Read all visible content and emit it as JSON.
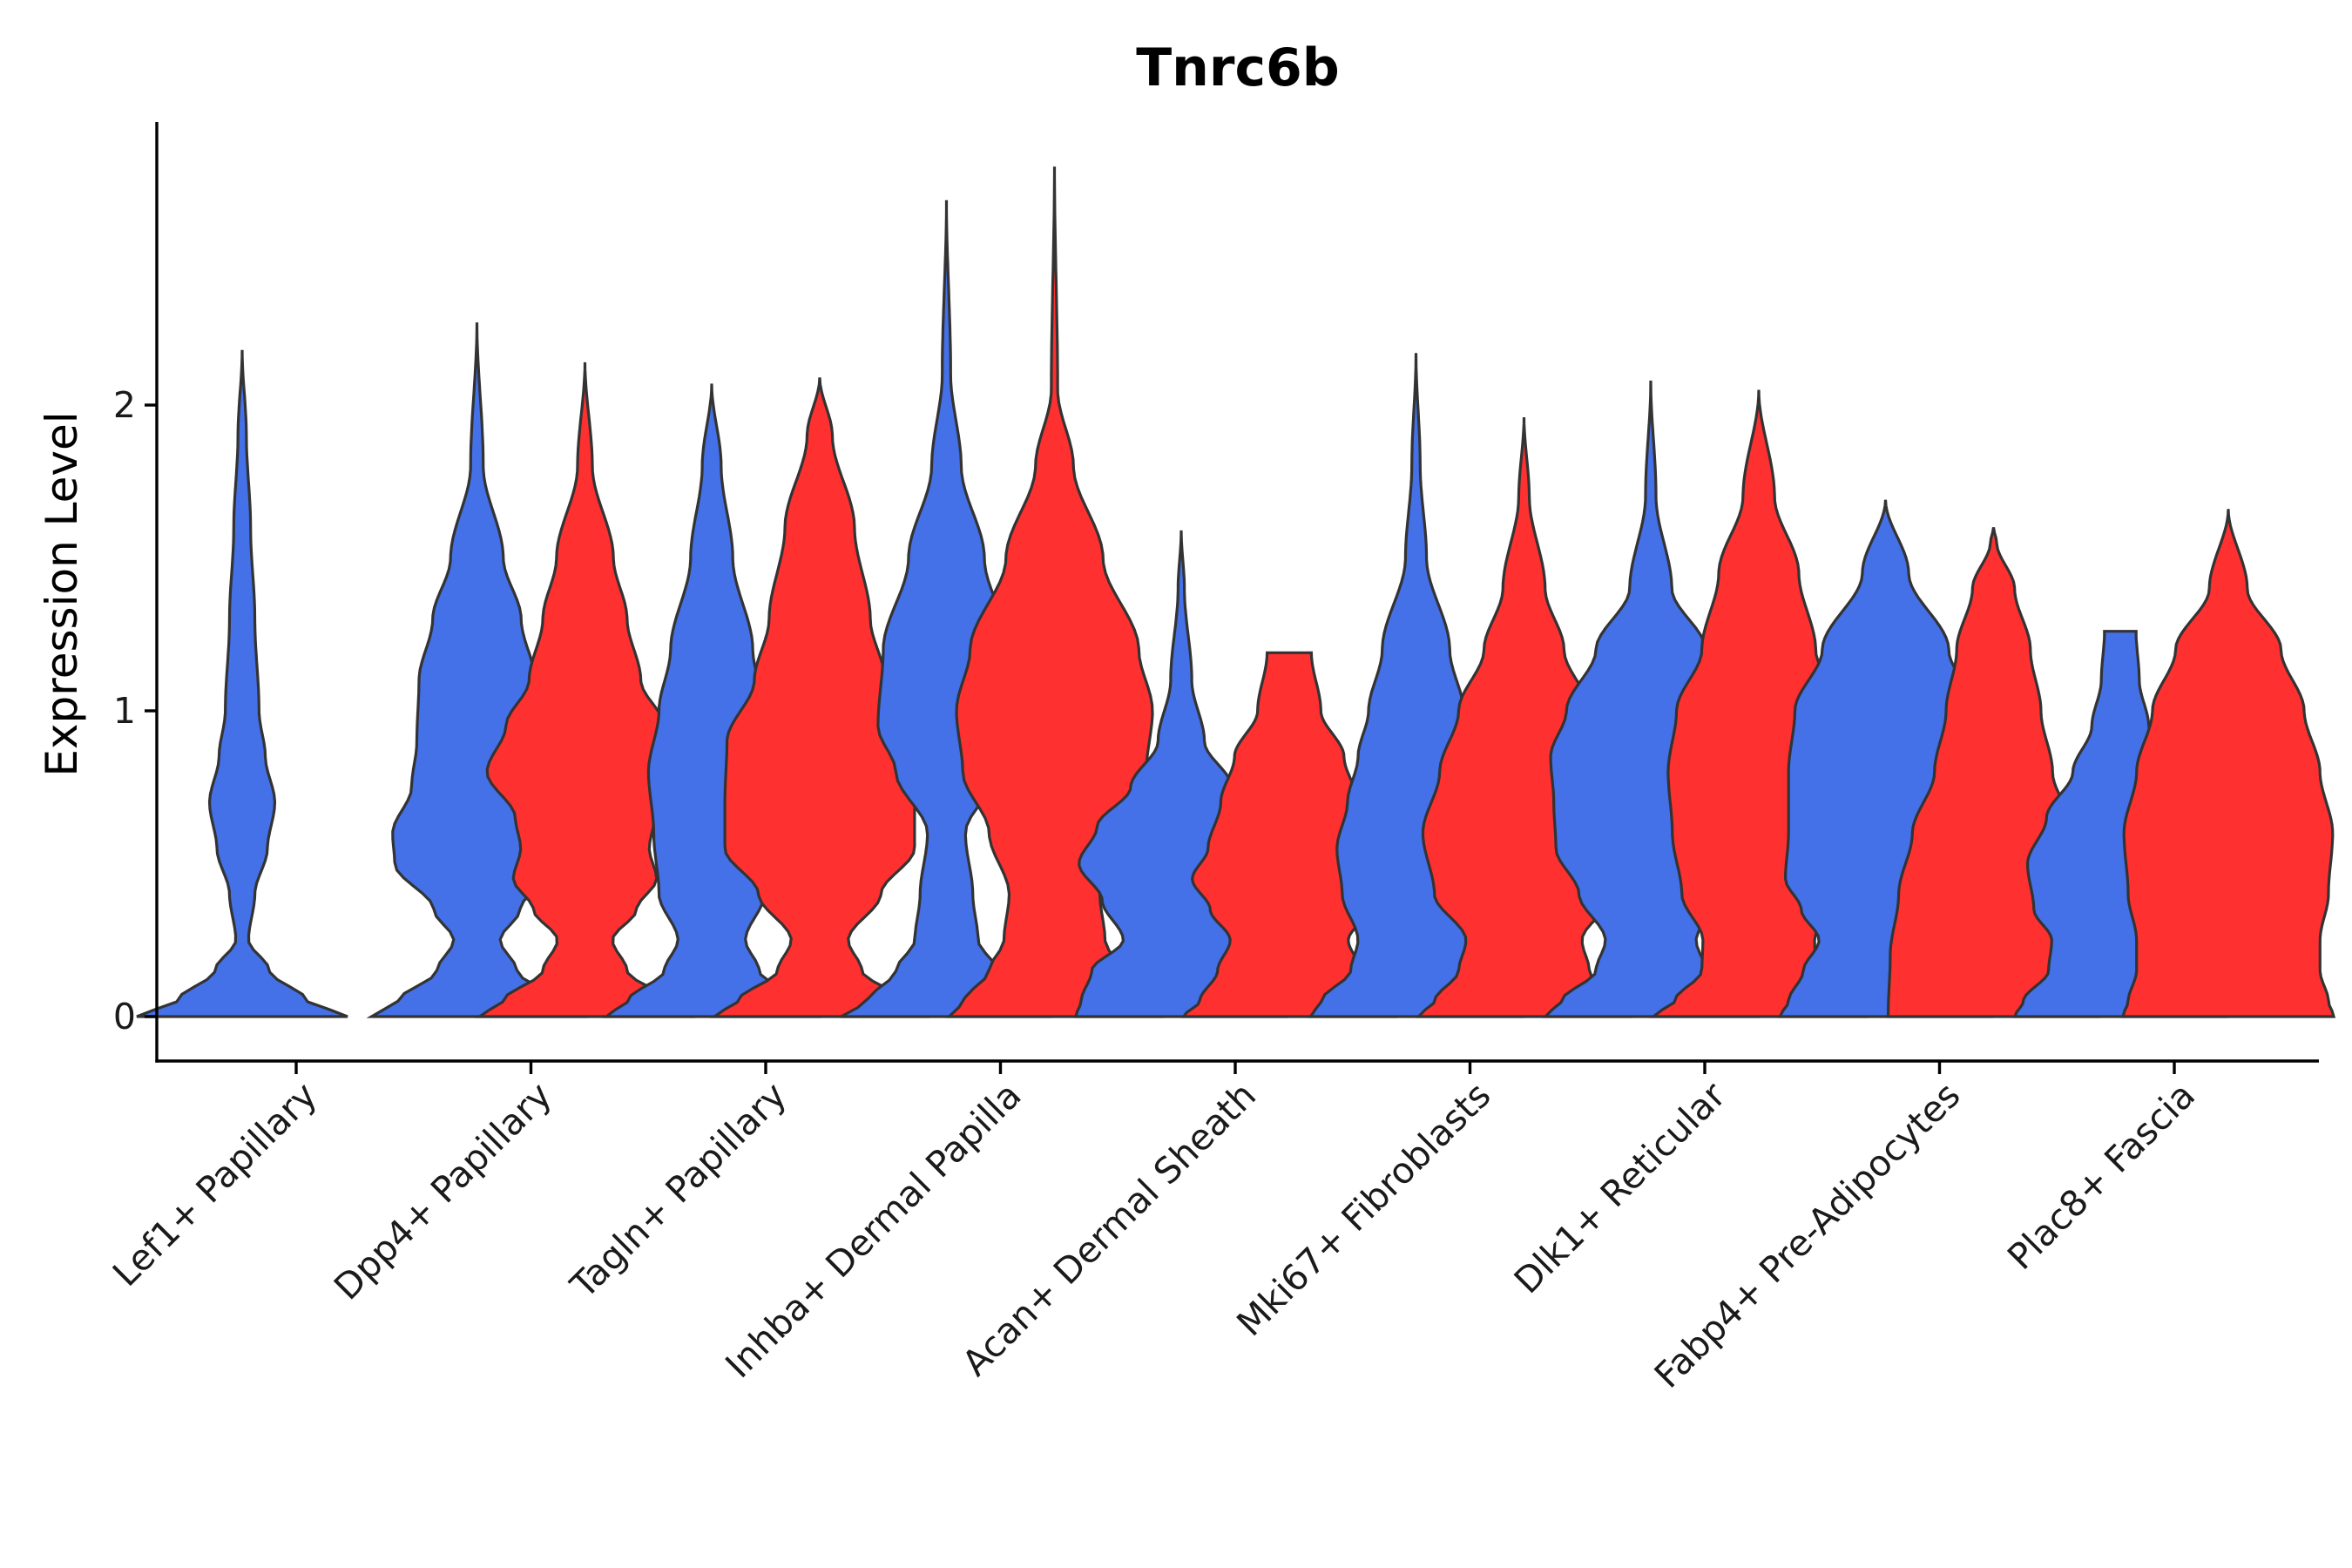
{
  "chart_data": {
    "type": "violin",
    "title": "Tnrc6b",
    "xlabel": "",
    "ylabel": "Expression Level",
    "ylim": [
      -0.14,
      2.93
    ],
    "yticks": [
      0,
      1,
      2
    ],
    "ytick_labels": [
      "0",
      "1",
      "2"
    ],
    "grid": false,
    "legend": "none",
    "colors": {
      "group_a": "#4470E8",
      "group_b": "#FF3030"
    },
    "categories": [
      "Lef1+ Papillary",
      "Dpp4+ Papillary",
      "Tagln+ Papillary",
      "Inhba+ Dermal Papilla",
      "Acan+ Dermal Sheath",
      "Mki67+ Fibroblasts",
      "Dlk1+ Reticular",
      "Fabp4+ Pre-Adipocytes",
      "Plac8+ Fascia"
    ],
    "violins": [
      {
        "category": "Lef1+ Papillary",
        "group": "group_a",
        "max": 2.18,
        "profile": [
          [
            0,
            1.0
          ],
          [
            0.05,
            0.62
          ],
          [
            0.15,
            0.26
          ],
          [
            0.25,
            0.06
          ],
          [
            0.4,
            0.12
          ],
          [
            0.55,
            0.24
          ],
          [
            0.7,
            0.31
          ],
          [
            0.85,
            0.22
          ],
          [
            1.0,
            0.16
          ],
          [
            1.3,
            0.12
          ],
          [
            1.6,
            0.08
          ],
          [
            1.9,
            0.04
          ],
          [
            2.18,
            0.0
          ]
        ]
      },
      {
        "category": "Dpp4+ Papillary",
        "group": "group_a",
        "max": 2.27,
        "profile": [
          [
            0,
            1.0
          ],
          [
            0.05,
            0.75
          ],
          [
            0.15,
            0.38
          ],
          [
            0.25,
            0.22
          ],
          [
            0.35,
            0.41
          ],
          [
            0.5,
            0.78
          ],
          [
            0.6,
            0.8
          ],
          [
            0.75,
            0.62
          ],
          [
            0.9,
            0.57
          ],
          [
            1.1,
            0.55
          ],
          [
            1.3,
            0.42
          ],
          [
            1.5,
            0.25
          ],
          [
            1.8,
            0.06
          ],
          [
            2.27,
            0.0
          ]
        ]
      },
      {
        "category": "Dpp4+ Papillary",
        "group": "group_b",
        "max": 2.14,
        "profile": [
          [
            0,
            1.0
          ],
          [
            0.05,
            0.78
          ],
          [
            0.15,
            0.4
          ],
          [
            0.25,
            0.26
          ],
          [
            0.35,
            0.49
          ],
          [
            0.45,
            0.68
          ],
          [
            0.55,
            0.61
          ],
          [
            0.65,
            0.66
          ],
          [
            0.8,
            0.93
          ],
          [
            0.95,
            0.75
          ],
          [
            1.1,
            0.53
          ],
          [
            1.3,
            0.4
          ],
          [
            1.5,
            0.27
          ],
          [
            1.8,
            0.07
          ],
          [
            2.14,
            0.0
          ]
        ]
      },
      {
        "category": "Tagln+ Papillary",
        "group": "group_a",
        "max": 2.07,
        "profile": [
          [
            0,
            1.0
          ],
          [
            0.05,
            0.8
          ],
          [
            0.15,
            0.45
          ],
          [
            0.25,
            0.32
          ],
          [
            0.4,
            0.5
          ],
          [
            0.6,
            0.55
          ],
          [
            0.8,
            0.6
          ],
          [
            1.0,
            0.5
          ],
          [
            1.2,
            0.39
          ],
          [
            1.5,
            0.2
          ],
          [
            1.8,
            0.09
          ],
          [
            2.07,
            0.0
          ]
        ]
      },
      {
        "category": "Tagln+ Papillary",
        "group": "group_b",
        "max": 2.09,
        "profile": [
          [
            0,
            1.0
          ],
          [
            0.05,
            0.78
          ],
          [
            0.15,
            0.4
          ],
          [
            0.25,
            0.27
          ],
          [
            0.4,
            0.58
          ],
          [
            0.55,
            0.9
          ],
          [
            0.7,
            0.9
          ],
          [
            0.9,
            0.88
          ],
          [
            1.1,
            0.62
          ],
          [
            1.3,
            0.48
          ],
          [
            1.6,
            0.33
          ],
          [
            1.9,
            0.12
          ],
          [
            2.09,
            0.0
          ]
        ]
      },
      {
        "category": "Inhba+ Dermal Papilla",
        "group": "group_a",
        "max": 2.67,
        "profile": [
          [
            0,
            1.0
          ],
          [
            0.05,
            0.75
          ],
          [
            0.15,
            0.48
          ],
          [
            0.25,
            0.3
          ],
          [
            0.4,
            0.25
          ],
          [
            0.6,
            0.18
          ],
          [
            0.8,
            0.48
          ],
          [
            0.95,
            0.65
          ],
          [
            1.2,
            0.6
          ],
          [
            1.5,
            0.36
          ],
          [
            1.8,
            0.14
          ],
          [
            2.1,
            0.04
          ],
          [
            2.67,
            0.0
          ]
        ]
      },
      {
        "category": "Inhba+ Dermal Papilla",
        "group": "group_b",
        "max": 2.78,
        "profile": [
          [
            0,
            1.0
          ],
          [
            0.05,
            0.86
          ],
          [
            0.15,
            0.62
          ],
          [
            0.25,
            0.48
          ],
          [
            0.4,
            0.43
          ],
          [
            0.6,
            0.62
          ],
          [
            0.8,
            0.87
          ],
          [
            1.0,
            0.93
          ],
          [
            1.2,
            0.8
          ],
          [
            1.5,
            0.46
          ],
          [
            1.8,
            0.18
          ],
          [
            2.05,
            0.03
          ],
          [
            2.78,
            0.0
          ]
        ]
      },
      {
        "category": "Acan+ Dermal Sheath",
        "group": "group_a",
        "max": 1.59,
        "profile": [
          [
            0,
            1.0
          ],
          [
            0.05,
            0.95
          ],
          [
            0.15,
            0.85
          ],
          [
            0.25,
            0.55
          ],
          [
            0.38,
            0.75
          ],
          [
            0.5,
            0.97
          ],
          [
            0.62,
            0.8
          ],
          [
            0.75,
            0.48
          ],
          [
            0.9,
            0.22
          ],
          [
            1.1,
            0.1
          ],
          [
            1.4,
            0.03
          ],
          [
            1.59,
            0.0
          ]
        ]
      },
      {
        "category": "Acan+ Dermal Sheath",
        "group": "group_b",
        "max": 1.19,
        "profile": [
          [
            0,
            1.0
          ],
          [
            0.05,
            0.85
          ],
          [
            0.15,
            0.68
          ],
          [
            0.25,
            0.56
          ],
          [
            0.35,
            0.75
          ],
          [
            0.45,
            0.92
          ],
          [
            0.55,
            0.77
          ],
          [
            0.7,
            0.65
          ],
          [
            0.85,
            0.52
          ],
          [
            1.0,
            0.3
          ],
          [
            1.19,
            0.21
          ]
        ]
      },
      {
        "category": "Mki67+ Fibroblasts",
        "group": "group_a",
        "max": 2.17,
        "profile": [
          [
            0,
            1.0
          ],
          [
            0.05,
            0.9
          ],
          [
            0.15,
            0.62
          ],
          [
            0.25,
            0.55
          ],
          [
            0.4,
            0.7
          ],
          [
            0.55,
            0.75
          ],
          [
            0.7,
            0.65
          ],
          [
            0.85,
            0.55
          ],
          [
            1.0,
            0.45
          ],
          [
            1.2,
            0.32
          ],
          [
            1.5,
            0.1
          ],
          [
            1.8,
            0.04
          ],
          [
            2.17,
            0.0
          ]
        ]
      },
      {
        "category": "Mki67+ Fibroblasts",
        "group": "group_b",
        "max": 1.96,
        "profile": [
          [
            0,
            1.0
          ],
          [
            0.05,
            0.85
          ],
          [
            0.15,
            0.62
          ],
          [
            0.25,
            0.55
          ],
          [
            0.4,
            0.85
          ],
          [
            0.6,
            0.96
          ],
          [
            0.8,
            0.8
          ],
          [
            1.0,
            0.62
          ],
          [
            1.2,
            0.38
          ],
          [
            1.4,
            0.2
          ],
          [
            1.7,
            0.05
          ],
          [
            1.96,
            0.0
          ]
        ]
      },
      {
        "category": "Dlk1+ Reticular",
        "group": "group_a",
        "max": 2.08,
        "profile": [
          [
            0,
            1.0
          ],
          [
            0.05,
            0.85
          ],
          [
            0.15,
            0.52
          ],
          [
            0.25,
            0.43
          ],
          [
            0.4,
            0.68
          ],
          [
            0.55,
            0.9
          ],
          [
            0.7,
            0.92
          ],
          [
            0.85,
            0.95
          ],
          [
            1.0,
            0.8
          ],
          [
            1.2,
            0.52
          ],
          [
            1.4,
            0.2
          ],
          [
            1.7,
            0.05
          ],
          [
            2.08,
            0.0
          ]
        ]
      },
      {
        "category": "Dlk1+ Reticular",
        "group": "group_b",
        "max": 2.05,
        "profile": [
          [
            0,
            1.0
          ],
          [
            0.05,
            0.8
          ],
          [
            0.15,
            0.54
          ],
          [
            0.25,
            0.53
          ],
          [
            0.4,
            0.73
          ],
          [
            0.6,
            0.82
          ],
          [
            0.8,
            0.86
          ],
          [
            1.0,
            0.78
          ],
          [
            1.2,
            0.54
          ],
          [
            1.45,
            0.38
          ],
          [
            1.7,
            0.15
          ],
          [
            2.05,
            0.0
          ]
        ]
      },
      {
        "category": "Fabp4+ Pre-Adipocytes",
        "group": "group_a",
        "max": 1.69,
        "profile": [
          [
            0,
            1.0
          ],
          [
            0.05,
            0.92
          ],
          [
            0.15,
            0.78
          ],
          [
            0.25,
            0.63
          ],
          [
            0.35,
            0.8
          ],
          [
            0.45,
            0.95
          ],
          [
            0.6,
            0.92
          ],
          [
            0.8,
            0.92
          ],
          [
            1.0,
            0.86
          ],
          [
            1.2,
            0.6
          ],
          [
            1.45,
            0.22
          ],
          [
            1.69,
            0.0
          ]
        ]
      },
      {
        "category": "Fabp4+ Pre-Adipocytes",
        "group": "group_b",
        "max": 1.6,
        "profile": [
          [
            0,
            1.0
          ],
          [
            0.2,
            0.98
          ],
          [
            0.4,
            0.9
          ],
          [
            0.6,
            0.77
          ],
          [
            0.8,
            0.56
          ],
          [
            1.0,
            0.45
          ],
          [
            1.2,
            0.35
          ],
          [
            1.4,
            0.2
          ],
          [
            1.55,
            0.03
          ],
          [
            1.6,
            0.0
          ]
        ]
      },
      {
        "category": "Plac8+ Fascia",
        "group": "group_a",
        "max": 1.26,
        "profile": [
          [
            0,
            1.0
          ],
          [
            0.05,
            0.92
          ],
          [
            0.15,
            0.68
          ],
          [
            0.25,
            0.65
          ],
          [
            0.35,
            0.82
          ],
          [
            0.5,
            0.88
          ],
          [
            0.65,
            0.7
          ],
          [
            0.8,
            0.45
          ],
          [
            0.95,
            0.27
          ],
          [
            1.1,
            0.18
          ],
          [
            1.26,
            0.15
          ]
        ]
      },
      {
        "category": "Plac8+ Fascia",
        "group": "group_b",
        "max": 1.66,
        "profile": [
          [
            0,
            1.0
          ],
          [
            0.05,
            0.95
          ],
          [
            0.15,
            0.87
          ],
          [
            0.25,
            0.87
          ],
          [
            0.4,
            0.95
          ],
          [
            0.6,
            0.99
          ],
          [
            0.8,
            0.87
          ],
          [
            1.0,
            0.72
          ],
          [
            1.2,
            0.5
          ],
          [
            1.4,
            0.18
          ],
          [
            1.66,
            0.0
          ]
        ]
      }
    ]
  }
}
